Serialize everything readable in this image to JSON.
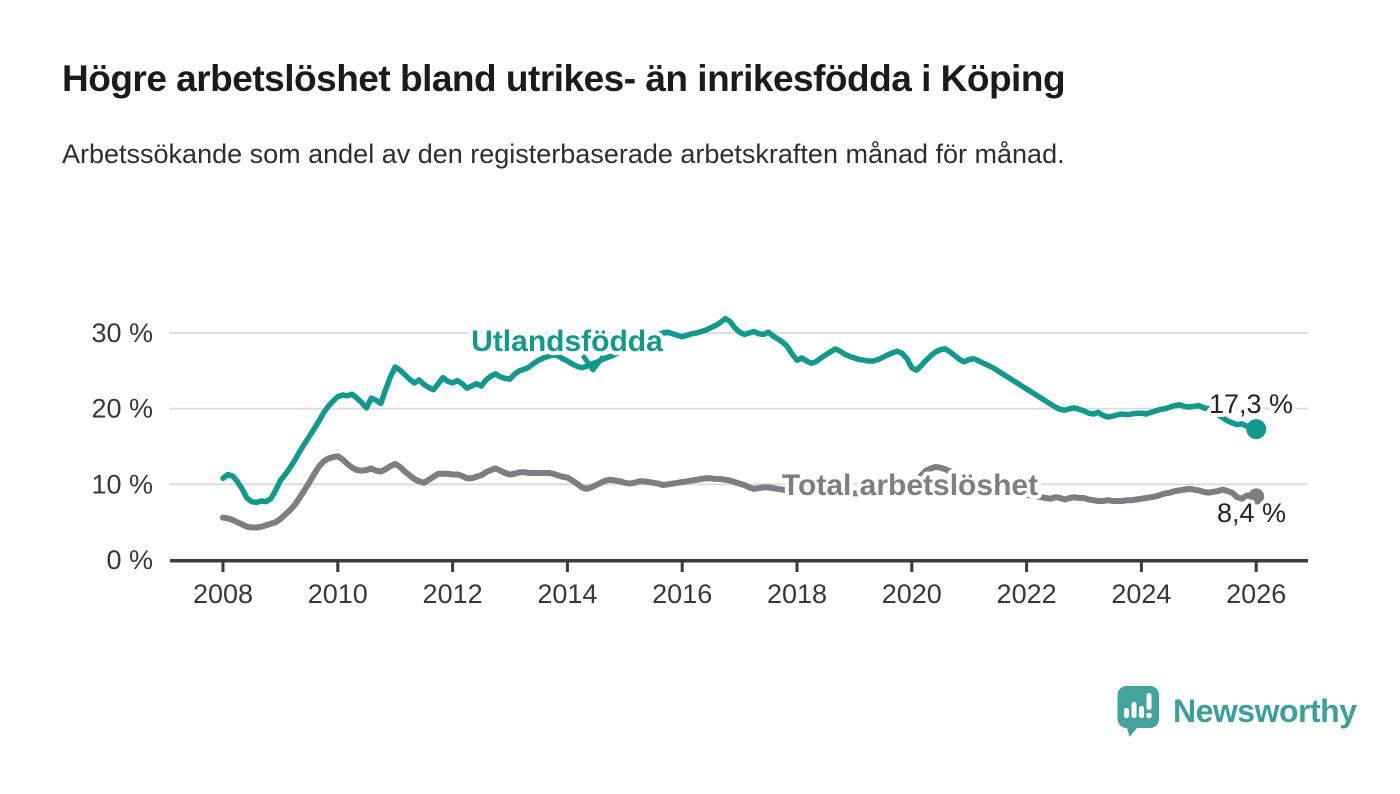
{
  "header": {
    "title": "Högre arbetslöshet bland utrikes- än inrikesfödda i Köping",
    "subtitle": "Arbetssökande som andel av den registerbaserade arbetskraften månad för månad."
  },
  "chart_data": {
    "type": "line",
    "x_unit": "month",
    "x_start_year": 2008,
    "x_end_year": 2026,
    "ylim": [
      0,
      33
    ],
    "grid": true,
    "legend_position": "inline-labels",
    "x_tick_labels": [
      "2008",
      "2010",
      "2012",
      "2014",
      "2016",
      "2018",
      "2020",
      "2022",
      "2024",
      "2026"
    ],
    "y_tick_labels": [
      "0 %",
      "10 %",
      "20 %",
      "30 %"
    ],
    "y_tick_values": [
      0,
      10,
      20,
      30
    ],
    "series": [
      {
        "name": "Utlandsfödda",
        "color": "#12998C",
        "end_label": "17,3 %",
        "last_value": 17.3,
        "values": [
          10.8,
          11.3,
          11.1,
          10.4,
          9.4,
          8.2,
          7.7,
          7.6,
          7.8,
          7.7,
          8.1,
          9.2,
          10.5,
          11.3,
          12.2,
          13.2,
          14.3,
          15.3,
          16.3,
          17.3,
          18.3,
          19.4,
          20.3,
          21.0,
          21.6,
          21.8,
          21.7,
          21.9,
          21.4,
          20.8,
          20.1,
          21.4,
          21.1,
          20.7,
          22.5,
          24.2,
          25.5,
          25.1,
          24.5,
          23.9,
          23.4,
          23.8,
          23.2,
          22.8,
          22.5,
          23.3,
          24.1,
          23.6,
          23.4,
          23.7,
          23.3,
          22.7,
          23.0,
          23.3,
          23.0,
          23.8,
          24.3,
          24.6,
          24.2,
          24.0,
          23.9,
          24.6,
          25.0,
          25.2,
          25.5,
          26.0,
          26.4,
          26.7,
          26.9,
          27.1,
          27.0,
          26.6,
          26.3,
          25.9,
          25.6,
          25.4,
          25.6,
          25.9,
          26.1,
          26.4,
          26.7,
          26.9,
          27.2,
          27.5,
          27.8,
          28.1,
          28.4,
          28.7,
          29.0,
          29.3,
          29.6,
          29.8,
          30.0,
          30.1,
          29.9,
          29.7,
          29.5,
          29.7,
          29.9,
          30.0,
          30.2,
          30.4,
          30.7,
          31.0,
          31.4,
          31.9,
          31.5,
          30.7,
          30.1,
          29.8,
          30.0,
          30.2,
          29.9,
          29.8,
          30.1,
          29.6,
          29.2,
          28.8,
          28.2,
          27.2,
          26.4,
          26.7,
          26.3,
          26.0,
          26.2,
          26.7,
          27.1,
          27.5,
          27.9,
          27.6,
          27.2,
          26.9,
          26.7,
          26.5,
          26.4,
          26.3,
          26.3,
          26.5,
          26.8,
          27.1,
          27.4,
          27.6,
          27.3,
          26.6,
          25.4,
          25.1,
          25.7,
          26.4,
          27.0,
          27.5,
          27.8,
          27.9,
          27.5,
          27.0,
          26.5,
          26.2,
          26.5,
          26.6,
          26.3,
          26.0,
          25.7,
          25.4,
          25.0,
          24.6,
          24.2,
          23.8,
          23.4,
          23.0,
          22.6,
          22.2,
          21.8,
          21.4,
          21.0,
          20.6,
          20.2,
          19.9,
          19.8,
          20.0,
          20.1,
          19.9,
          19.7,
          19.4,
          19.3,
          19.5,
          19.1,
          18.9,
          19.0,
          19.2,
          19.3,
          19.2,
          19.3,
          19.4,
          19.4,
          19.3,
          19.5,
          19.7,
          19.9,
          20.0,
          20.2,
          20.4,
          20.5,
          20.3,
          20.2,
          20.3,
          20.4,
          20.1,
          20.0,
          19.6,
          19.2,
          18.8,
          18.4,
          18.1,
          17.9,
          18.0,
          17.7,
          17.5,
          17.3
        ]
      },
      {
        "name": "Total arbetslöshet",
        "color": "#7D7D82",
        "end_label": "8,4 %",
        "last_value": 8.4,
        "values": [
          5.6,
          5.5,
          5.3,
          5.0,
          4.7,
          4.4,
          4.3,
          4.3,
          4.4,
          4.6,
          4.8,
          5.0,
          5.4,
          6.0,
          6.6,
          7.3,
          8.2,
          9.2,
          10.2,
          11.3,
          12.3,
          13.0,
          13.4,
          13.6,
          13.7,
          13.3,
          12.7,
          12.2,
          11.9,
          11.8,
          11.9,
          12.1,
          11.8,
          11.7,
          12.0,
          12.4,
          12.7,
          12.3,
          11.7,
          11.2,
          10.7,
          10.4,
          10.2,
          10.6,
          11.0,
          11.4,
          11.4,
          11.4,
          11.3,
          11.3,
          11.1,
          10.8,
          10.8,
          11.0,
          11.2,
          11.6,
          11.9,
          12.1,
          11.8,
          11.5,
          11.3,
          11.4,
          11.6,
          11.6,
          11.5,
          11.5,
          11.5,
          11.5,
          11.5,
          11.4,
          11.2,
          11.0,
          10.9,
          10.5,
          10.1,
          9.6,
          9.4,
          9.6,
          9.9,
          10.2,
          10.5,
          10.6,
          10.5,
          10.4,
          10.2,
          10.1,
          10.2,
          10.4,
          10.4,
          10.3,
          10.2,
          10.1,
          9.9,
          10.0,
          10.1,
          10.2,
          10.3,
          10.4,
          10.5,
          10.6,
          10.7,
          10.8,
          10.8,
          10.7,
          10.7,
          10.6,
          10.5,
          10.3,
          10.1,
          9.9,
          9.6,
          9.4,
          9.5,
          9.6,
          9.6,
          9.5,
          9.4,
          9.3,
          9.2,
          9.2,
          9.1,
          9.1,
          9.0,
          9.0,
          8.9,
          8.9,
          8.9,
          8.8,
          8.8,
          8.8,
          8.8,
          8.8,
          8.8,
          8.8,
          8.8,
          8.8,
          8.9,
          8.9,
          9.0,
          9.0,
          9.1,
          9.1,
          9.2,
          9.4,
          9.8,
          10.4,
          11.2,
          11.8,
          12.1,
          12.3,
          12.2,
          12.0,
          11.7,
          11.4,
          11.1,
          10.9,
          10.7,
          10.5,
          10.3,
          10.1,
          9.9,
          9.7,
          9.5,
          9.3,
          9.1,
          9.0,
          8.9,
          8.7,
          8.6,
          8.5,
          8.4,
          8.3,
          8.2,
          8.1,
          8.3,
          8.2,
          8.0,
          8.2,
          8.3,
          8.2,
          8.2,
          8.0,
          7.9,
          7.8,
          7.8,
          7.9,
          7.8,
          7.8,
          7.8,
          7.9,
          7.9,
          8.0,
          8.1,
          8.2,
          8.3,
          8.4,
          8.6,
          8.8,
          8.9,
          9.1,
          9.2,
          9.3,
          9.4,
          9.3,
          9.2,
          9.0,
          8.9,
          9.0,
          9.1,
          9.3,
          9.1,
          8.9,
          8.3,
          8.1,
          8.5,
          8.6,
          8.4
        ]
      }
    ]
  },
  "footer": {
    "brand": "Newsworthy",
    "brand_color": "#3E9E99"
  }
}
